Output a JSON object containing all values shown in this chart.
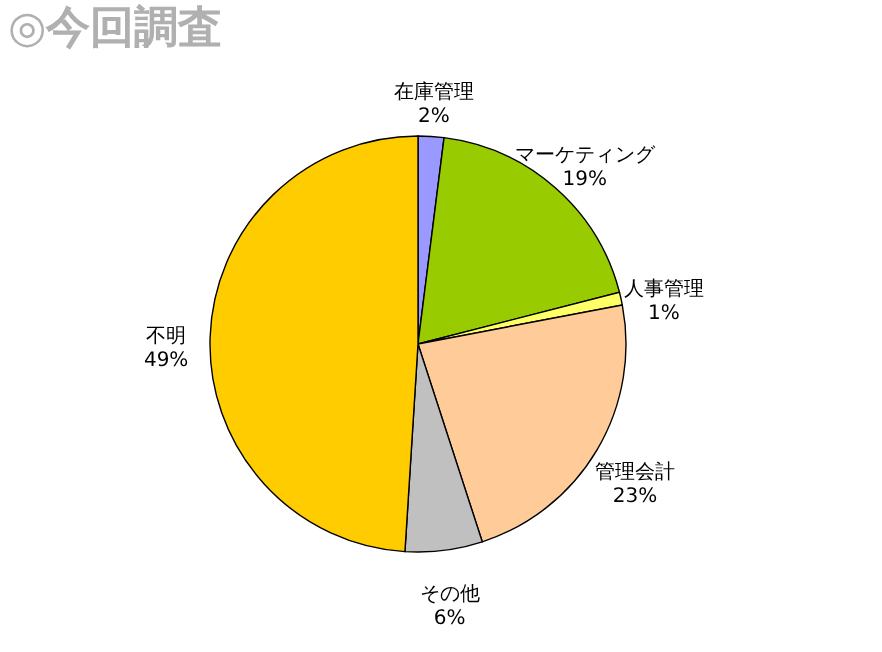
{
  "chart_data": {
    "type": "pie",
    "title": "◎今回調査",
    "categories": [
      "在庫管理",
      "マーケティング",
      "人事管理",
      "管理会計",
      "その他",
      "不明"
    ],
    "values": [
      2,
      19,
      1,
      23,
      6,
      49
    ],
    "value_labels": [
      "2%",
      "19%",
      "1%",
      "23%",
      "6%",
      "49%"
    ],
    "colors": [
      "#9999ff",
      "#99cc00",
      "#ffff66",
      "#ffcc99",
      "#c0c0c0",
      "#ffcc00"
    ]
  }
}
